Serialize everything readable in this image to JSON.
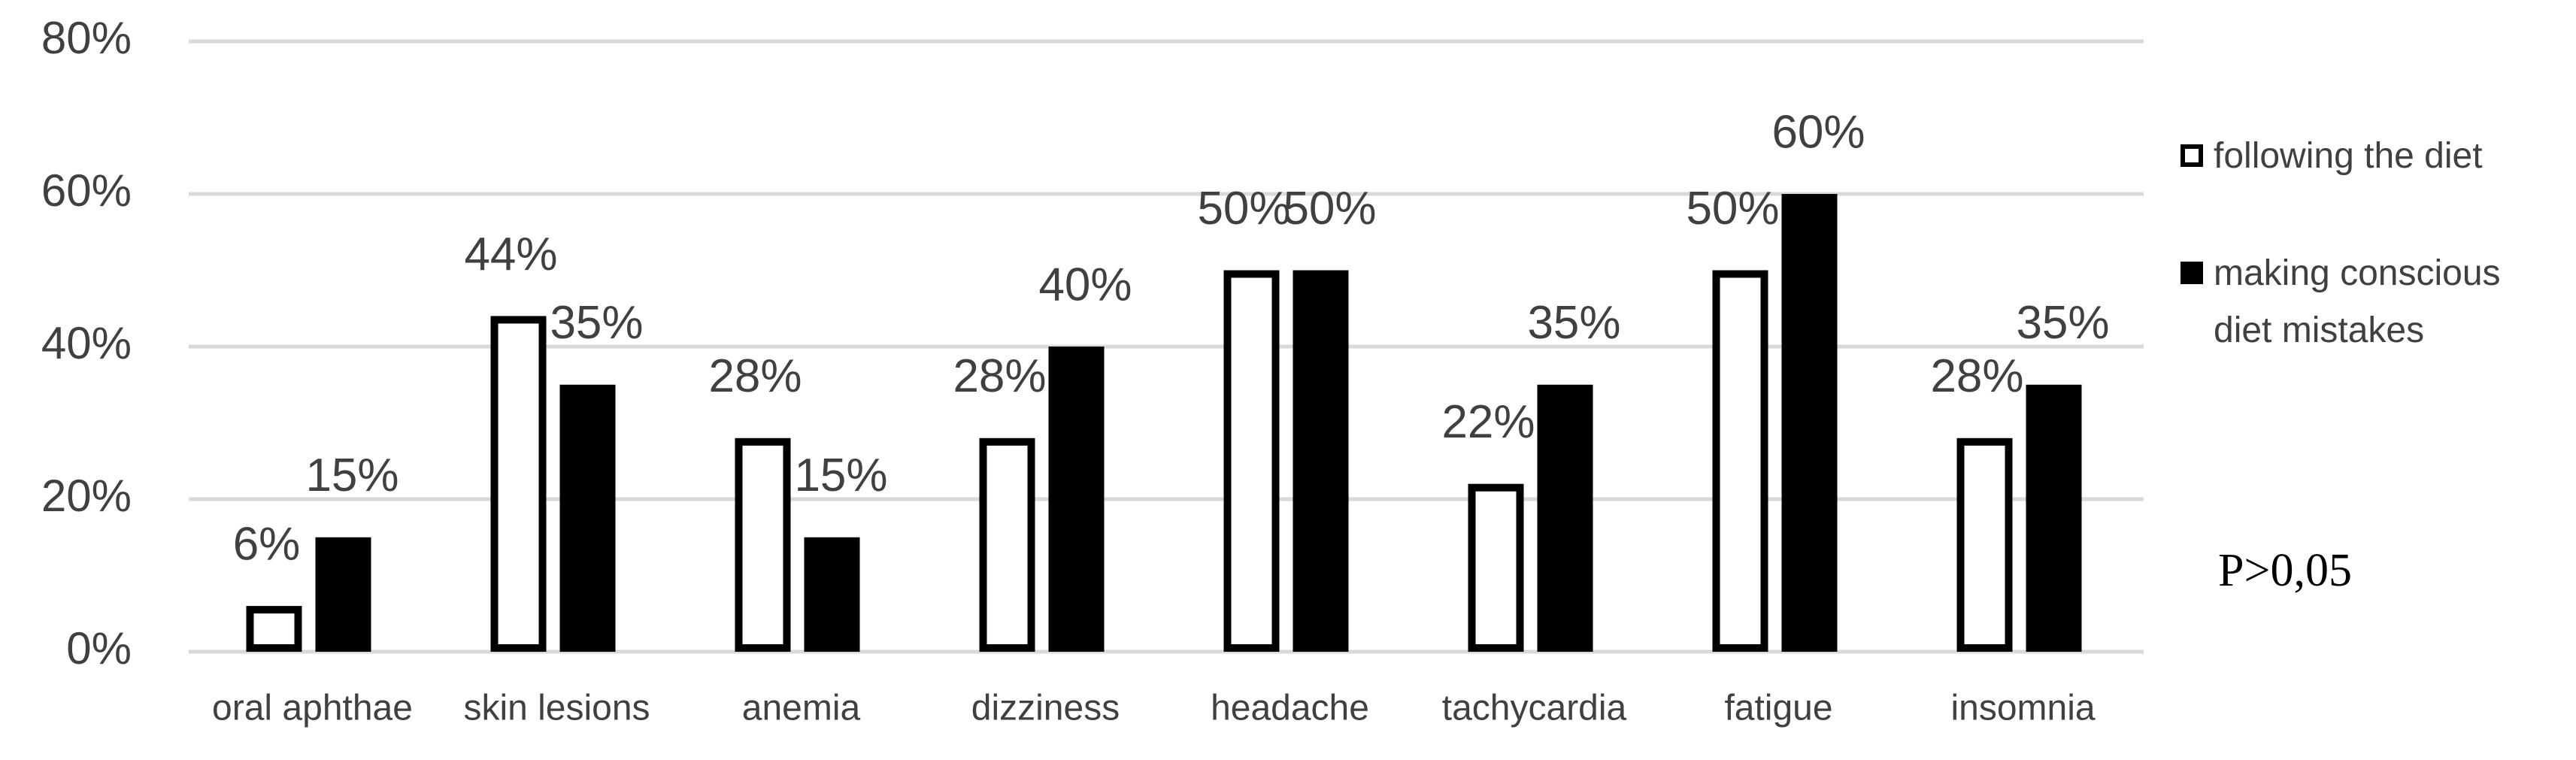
{
  "chart_data": {
    "type": "bar",
    "categories": [
      "oral aphthae",
      "skin lesions",
      "anemia",
      "dizziness",
      "headache",
      "tachycardia",
      "fatigue",
      "insomnia"
    ],
    "series": [
      {
        "name": "following the diet",
        "color": "#ffffff",
        "values": [
          6,
          44,
          28,
          28,
          50,
          22,
          50,
          28
        ],
        "value_labels": [
          "6%",
          "44%",
          "28%",
          "28%",
          "50%",
          "22%",
          "50%",
          "28%"
        ]
      },
      {
        "name": "making conscious diet mistakes",
        "color": "#000000",
        "values": [
          15,
          35,
          15,
          40,
          50,
          35,
          60,
          35
        ],
        "value_labels": [
          "15%",
          "35%",
          "15%",
          "40%",
          "50%",
          "35%",
          "60%",
          "35%"
        ]
      }
    ],
    "edgecolor": "#000000",
    "ylim": [
      0,
      80
    ],
    "yticks": [
      {
        "value": 0,
        "label": "0%"
      },
      {
        "value": 20,
        "label": "20%"
      },
      {
        "value": 40,
        "label": "40%"
      },
      {
        "value": 60,
        "label": "60%"
      },
      {
        "value": 80,
        "label": "80%"
      }
    ],
    "grid": true,
    "legend": "right",
    "annotation": "P>0,05"
  }
}
